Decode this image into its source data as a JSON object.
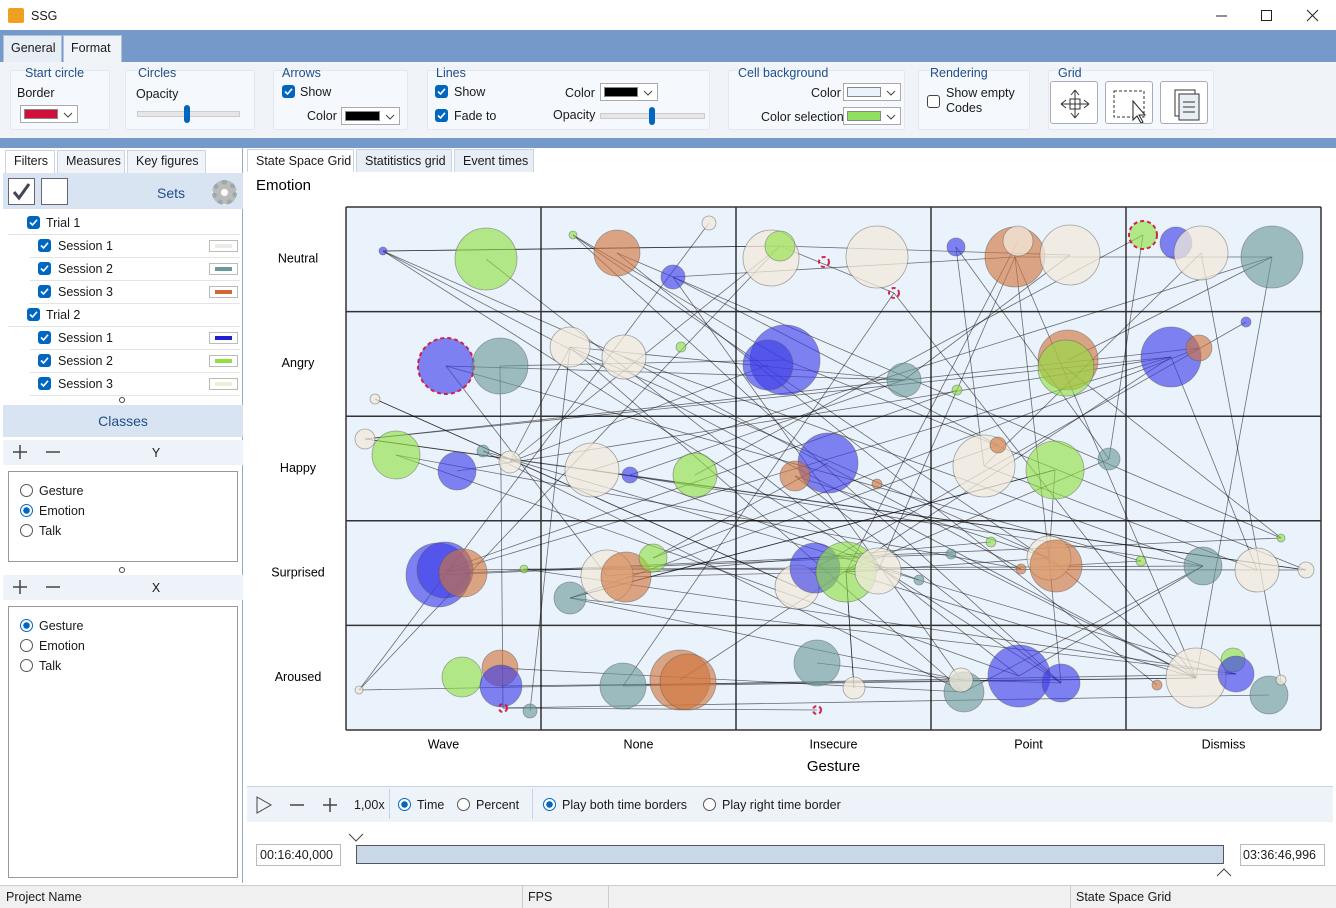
{
  "window": {
    "title": "SSG"
  },
  "ribbon_tabs": [
    "General",
    "Format"
  ],
  "ribbon": {
    "start_circle": {
      "title": "Start circle",
      "border": "Border",
      "border_color": "#d0103a"
    },
    "circles": {
      "title": "Circles",
      "opacity": "Opacity"
    },
    "arrows": {
      "title": "Arrows",
      "show": "Show",
      "show_checked": true,
      "color": "Color",
      "color_value": "#000000"
    },
    "lines": {
      "title": "Lines",
      "show": "Show",
      "show_checked": true,
      "fade": "Fade to",
      "fade_checked": true,
      "color": "Color",
      "color_value": "#000000",
      "opacity": "Opacity"
    },
    "cell_background": {
      "title": "Cell background",
      "color": "Color",
      "color_value": "#eaf2fb",
      "color_selection": "Color selection",
      "selection_value": "#90e060"
    },
    "rendering": {
      "title": "Rendering",
      "show_empty": "Show empty Codes",
      "show_empty_checked": false
    },
    "grid": {
      "title": "Grid"
    }
  },
  "left_tabs": [
    "Filters",
    "Measures",
    "Key figures"
  ],
  "sets": {
    "title": "Sets",
    "trials": [
      {
        "label": "Trial 1",
        "checked": true,
        "sessions": [
          {
            "label": "Session 1",
            "checked": true,
            "color": "#ecece4"
          },
          {
            "label": "Session 2",
            "checked": true,
            "color": "#6a9a9a"
          },
          {
            "label": "Session 3",
            "checked": true,
            "color": "#d0683a"
          }
        ]
      },
      {
        "label": "Trial 2",
        "checked": true,
        "sessions": [
          {
            "label": "Session 1",
            "checked": true,
            "color": "#2020d0"
          },
          {
            "label": "Session 2",
            "checked": true,
            "color": "#90e040"
          },
          {
            "label": "Session 3",
            "checked": true,
            "color": "#eeeedd"
          }
        ]
      }
    ]
  },
  "classes": {
    "title": "Classes",
    "y": {
      "label": "Y",
      "options": [
        "Gesture",
        "Emotion",
        "Talk"
      ],
      "selected": "Emotion"
    },
    "x": {
      "label": "X",
      "options": [
        "Gesture",
        "Emotion",
        "Talk"
      ],
      "selected": "Gesture"
    }
  },
  "view_tabs": [
    "State Space Grid",
    "Statitistics grid",
    "Event times"
  ],
  "grid": {
    "y_title": "Emotion",
    "x_title": "Gesture",
    "rows": [
      "Neutral",
      "Angry",
      "Happy",
      "Surprised",
      "Aroused"
    ],
    "columns": [
      "Wave",
      "None",
      "Insecure",
      "Point",
      "Dismiss"
    ]
  },
  "playback": {
    "speed": "1,00x",
    "time": "Time",
    "percent": "Percent",
    "mode": "Time",
    "play_both": "Play both time borders",
    "play_right": "Play right time border",
    "play_mode": "both",
    "start": "00:16:40,000",
    "end": "03:36:46,996"
  },
  "status": {
    "project": "Project Name",
    "fps": "FPS",
    "view": "State Space Grid"
  }
}
